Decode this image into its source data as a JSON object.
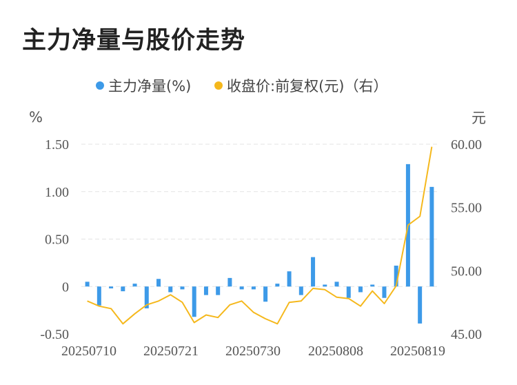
{
  "title": "主力净量与股价走势",
  "chart_data": {
    "type": "bar+line",
    "left_unit": "%",
    "right_unit": "元",
    "left_ticks": [
      "1.50",
      "1.00",
      "0.50",
      "0",
      "-0.50"
    ],
    "right_ticks": [
      "60.00",
      "55.00",
      "50.00",
      "45.00"
    ],
    "ylim_left": [
      -0.5,
      1.5
    ],
    "ylim_right": [
      45,
      60
    ],
    "x_tick_labels": [
      "20250710",
      "20250721",
      "20250730",
      "20250808",
      "20250819"
    ],
    "grid": true,
    "legend_position": "top",
    "series": [
      {
        "name": "主力净量(%)",
        "type": "bar",
        "axis": "left",
        "color": "#3d9ae8",
        "values": [
          0.05,
          -0.2,
          -0.02,
          -0.05,
          0.03,
          -0.23,
          0.08,
          -0.06,
          -0.03,
          -0.32,
          -0.09,
          -0.09,
          0.09,
          -0.03,
          -0.03,
          -0.16,
          0.03,
          0.16,
          -0.09,
          0.31,
          0.02,
          0.05,
          -0.12,
          -0.06,
          0.02,
          -0.12,
          0.22,
          1.29,
          -0.39,
          1.05
        ]
      },
      {
        "name": "收盘价:前复权(元)（右）",
        "type": "line",
        "axis": "right",
        "color": "#f5b81c",
        "values": [
          47.6,
          47.2,
          47.0,
          45.8,
          46.6,
          47.3,
          47.6,
          48.1,
          47.5,
          45.9,
          46.5,
          46.3,
          47.3,
          47.6,
          46.7,
          46.2,
          45.8,
          47.5,
          47.6,
          48.6,
          48.5,
          47.9,
          47.8,
          47.2,
          48.4,
          47.4,
          48.8,
          53.6,
          54.3,
          59.8
        ]
      }
    ]
  }
}
